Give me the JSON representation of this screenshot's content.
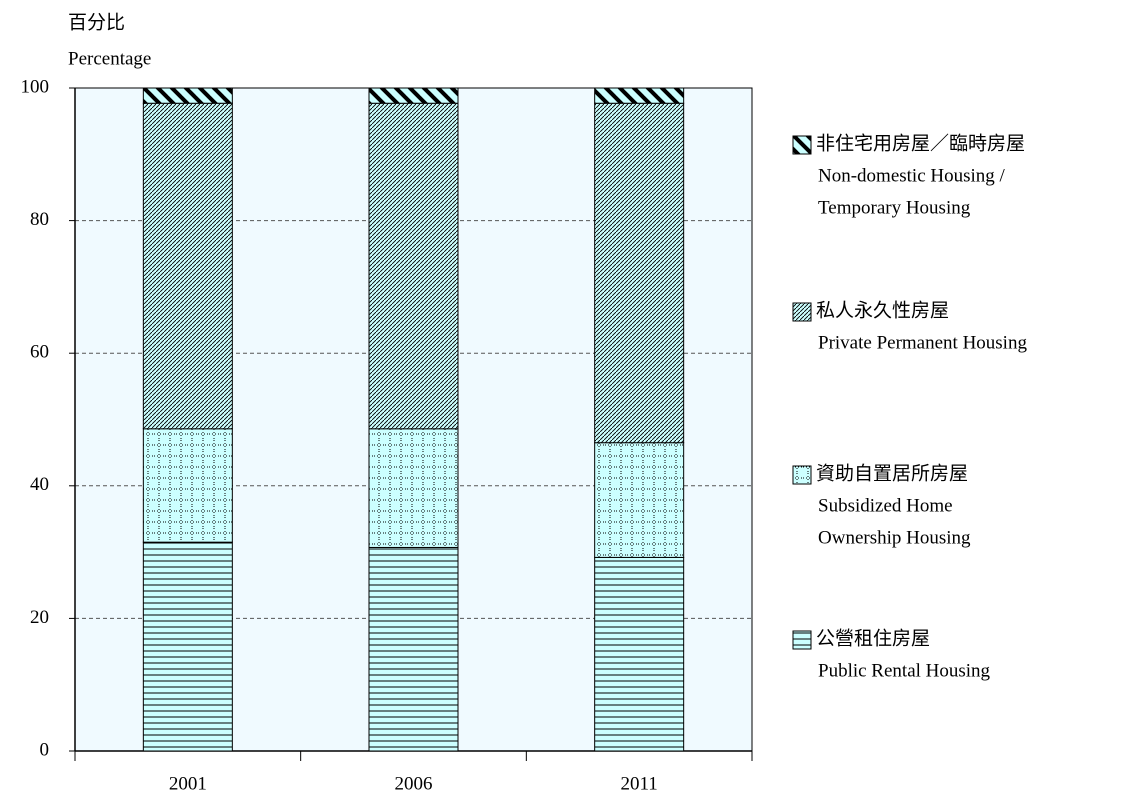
{
  "chart_data": {
    "type": "stacked_bar",
    "y_label": "百分比",
    "y_label_en": "Percentage",
    "categories": [
      "2001",
      "2006",
      "2011"
    ],
    "series": [
      {
        "name": "公營租住房屋",
        "name_en": [
          "Public Rental Housing"
        ],
        "color": "#ccffff",
        "pattern": "horizontal",
        "values": [
          31.5,
          30.7,
          29.2
        ]
      },
      {
        "name": "資助自置居所房屋",
        "name_en": [
          "Subsidized Home",
          "Ownership Housing"
        ],
        "color": "#ccffff",
        "pattern": "grid",
        "values": [
          17.1,
          17.9,
          17.3
        ]
      },
      {
        "name": "私人永久性房屋",
        "name_en": [
          "Private Permanent Housing"
        ],
        "color": "#ccffff",
        "pattern": "fine-diagonal",
        "values": [
          49.1,
          49.1,
          51.2
        ]
      },
      {
        "name": "非住宅用房屋／臨時房屋",
        "name_en": [
          "Non-domestic Housing /",
          "Temporary Housing"
        ],
        "color": "#ccffff",
        "pattern": "thick-diagonal",
        "values": [
          2.3,
          2.3,
          2.3
        ]
      }
    ],
    "ylim": [
      0,
      100
    ],
    "yticks": [
      0,
      20,
      40,
      60,
      80,
      100
    ],
    "grid": true,
    "plot_background": "#f0faff"
  }
}
